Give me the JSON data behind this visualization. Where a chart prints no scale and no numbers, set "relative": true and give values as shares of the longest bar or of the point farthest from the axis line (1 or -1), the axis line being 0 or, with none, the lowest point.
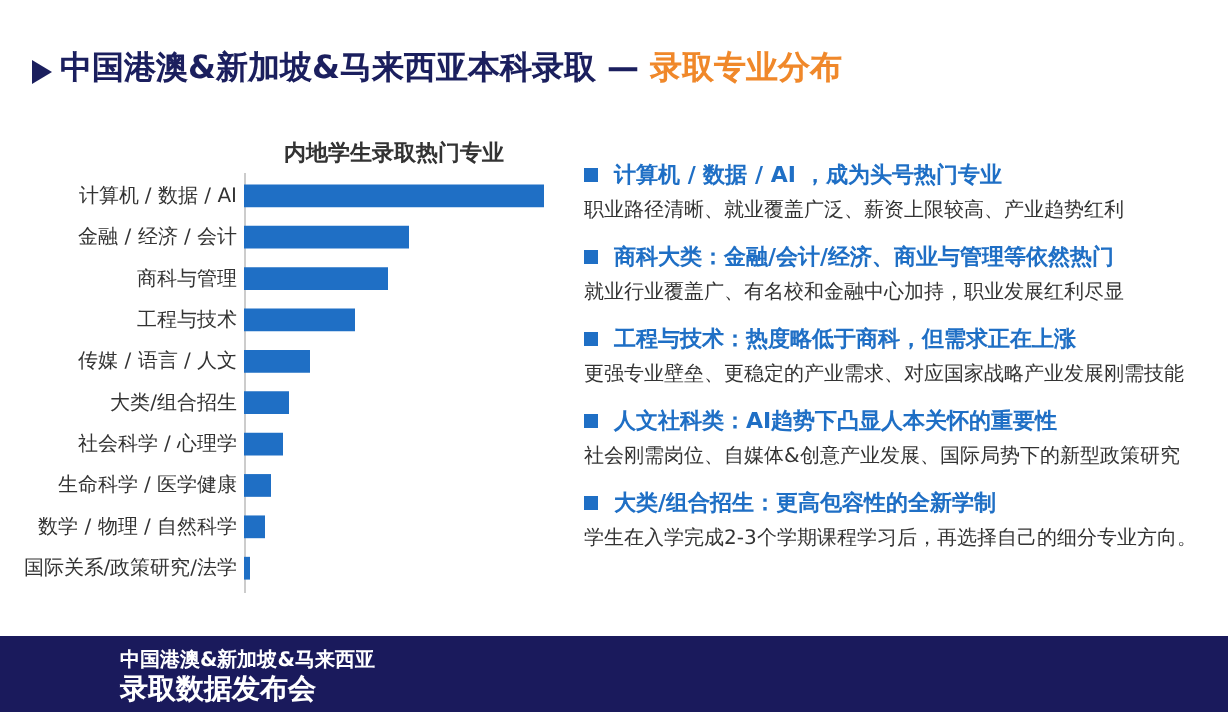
{
  "chart_data": {
    "type": "bar",
    "orientation": "horizontal",
    "relative": true,
    "title": "内地学生录取热门专业",
    "subtitle": "中国港澳&新加坡&马来西亚本科录取 — 录取专业分布",
    "categories": [
      "计算机 / 数据 / AI",
      "金融 / 经济 / 会计",
      "商科与管理",
      "工程与技术",
      "传媒 / 语言 / 人文",
      "大类/组合招生",
      "社会科学 / 心理学",
      "生命科学 / 医学健康",
      "数学 / 物理 / 自然科学",
      "国际关系/政策研究/法学"
    ],
    "values": [
      1,
      0.55,
      0.48,
      0.37,
      0.22,
      0.15,
      0.13,
      0.09,
      0.07,
      0.02
    ],
    "color": "#1f6fc5",
    "annotations": [
      "计算机 / 数据 / AI ，成为头号热门专业",
      "职业路径清晰、就业覆盖广泛、薪资上限较高、产业趋势红利",
      "商科大类：金融/会计/经济、商业与管理等依然热门",
      "就业行业覆盖广、有名校和金融中心加持，职业发展红利尽显",
      "工程与技术：热度略低于商科，但需求正在上涨",
      "更强专业壁垒、更稳定的产业需求、对应国家战略产业发展刚需技能",
      "人文社科类：AI趋势下凸显人本关怀的重要性",
      "社会刚需岗位、自媒体&创意产业发展、国际局势下的新型政策研究",
      "大类/组合招生：更高包容性的全新学制",
      "学生在入学完成2-3个学期课程学习后，再选择自己的细分专业方向。",
      "中国港澳&新加坡&马来西亚",
      "录取数据发布会"
    ]
  }
}
